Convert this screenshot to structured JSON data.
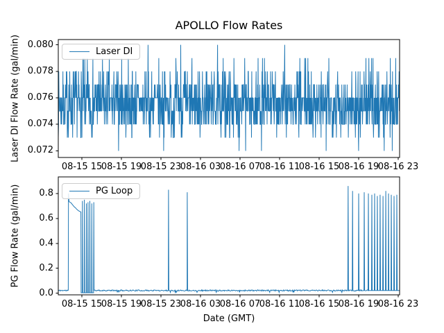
{
  "figure": {
    "title": "APOLLO Flow Rates",
    "line_color": "#1f77b4",
    "axes_color": "#000000",
    "legend_border_color": "#cccccc",
    "background": "#ffffff"
  },
  "chart_data": [
    {
      "type": "line",
      "title": "APOLLO Flow Rates",
      "ylabel": "Laser DI Flow Rate (gal/min)",
      "xlabel": "",
      "legend": {
        "label": "Laser DI",
        "position": "upper-left"
      },
      "grid": false,
      "ylim": [
        0.0715,
        0.0804
      ],
      "yticks": [
        0.072,
        0.074,
        0.076,
        0.078,
        0.08
      ],
      "ytick_labels": [
        "0.072",
        "0.074",
        "0.076",
        "0.078",
        "0.080"
      ],
      "xlim_hours": [
        -2.39,
        32.14
      ],
      "xtick_hours": [
        0,
        4,
        8,
        12,
        16,
        20,
        24,
        28,
        32
      ],
      "xtick_labels": [
        "08-15 15",
        "08-15 19",
        "08-15 23",
        "08-16 03",
        "08-16 07",
        "08-16 11",
        "08-16 15",
        "08-16 19",
        "08-16 23"
      ],
      "series": {
        "name": "Laser DI",
        "kind": "quantized_noise",
        "n_points": 1400,
        "seed": 7,
        "levels": [
          0.072,
          0.073,
          0.074,
          0.075,
          0.076,
          0.077,
          0.078,
          0.079,
          0.08
        ],
        "weights": [
          0.003,
          0.045,
          0.16,
          0.28,
          0.28,
          0.15,
          0.06,
          0.02,
          0.002
        ],
        "extremes": {
          "max_value": 0.08,
          "max_at_hours": [
            10.0
          ],
          "min_value": 0.072,
          "min_at_hours": [
            15.9,
            24.7,
            28.0
          ]
        }
      }
    },
    {
      "type": "line",
      "title": "",
      "ylabel": "PG Flow Rate (gal/min)",
      "xlabel": "Date (GMT)",
      "legend": {
        "label": "PG Loop",
        "position": "upper-left"
      },
      "grid": false,
      "ylim": [
        -0.013,
        0.933
      ],
      "yticks": [
        0.0,
        0.2,
        0.4,
        0.6,
        0.8
      ],
      "ytick_labels": [
        "0.0",
        "0.2",
        "0.4",
        "0.6",
        "0.8"
      ],
      "xlim_hours": [
        -2.39,
        32.14
      ],
      "xtick_hours": [
        0,
        4,
        8,
        12,
        16,
        20,
        24,
        28,
        32
      ],
      "xtick_labels": [
        "08-15 15",
        "08-15 19",
        "08-15 23",
        "08-16 03",
        "08-16 07",
        "08-16 11",
        "08-16 15",
        "08-16 19",
        "08-16 23"
      ],
      "series": {
        "name": "PG Loop",
        "kind": "piecewise",
        "baseline": 0.022,
        "baseline_noise": 0.005,
        "seed": 11,
        "points": [
          [
            -2.39,
            0.025
          ],
          [
            -1.38,
            0.025
          ],
          [
            -1.36,
            0.8
          ],
          [
            -1.3,
            0.735
          ],
          [
            -1.1,
            0.725
          ],
          [
            -0.95,
            0.71
          ],
          [
            -0.8,
            0.695
          ],
          [
            -0.65,
            0.685
          ],
          [
            -0.5,
            0.672
          ],
          [
            -0.35,
            0.662
          ],
          [
            -0.2,
            0.655
          ],
          [
            -0.1,
            0.652
          ],
          [
            -0.08,
            0.004
          ],
          [
            0.03,
            0.004
          ],
          [
            0.05,
            0.74
          ],
          [
            0.08,
            0.004
          ],
          [
            0.23,
            0.004
          ],
          [
            0.25,
            0.75
          ],
          [
            0.28,
            0.004
          ],
          [
            0.43,
            0.004
          ],
          [
            0.45,
            0.72
          ],
          [
            0.48,
            0.004
          ],
          [
            0.6,
            0.004
          ],
          [
            0.62,
            0.73
          ],
          [
            0.65,
            0.004
          ],
          [
            0.78,
            0.004
          ],
          [
            0.8,
            0.74
          ],
          [
            0.83,
            0.004
          ],
          [
            0.98,
            0.004
          ],
          [
            1.0,
            0.72
          ],
          [
            1.03,
            0.004
          ],
          [
            1.18,
            0.004
          ],
          [
            1.2,
            0.73
          ],
          [
            1.23,
            0.022
          ],
          [
            8.74,
            0.022
          ],
          [
            8.76,
            0.83
          ],
          [
            8.8,
            0.022
          ],
          [
            10.64,
            0.022
          ],
          [
            10.66,
            0.81
          ],
          [
            10.7,
            0.022
          ],
          [
            26.9,
            0.022
          ],
          [
            26.93,
            0.86
          ],
          [
            26.97,
            0.022
          ],
          [
            27.35,
            0.022
          ],
          [
            27.38,
            0.82
          ],
          [
            27.42,
            0.022
          ],
          [
            27.97,
            0.022
          ],
          [
            28.0,
            0.8
          ],
          [
            28.04,
            0.022
          ],
          [
            28.53,
            0.022
          ],
          [
            28.56,
            0.81
          ],
          [
            28.6,
            0.022
          ],
          [
            28.95,
            0.022
          ],
          [
            28.98,
            0.8
          ],
          [
            29.02,
            0.022
          ],
          [
            29.3,
            0.022
          ],
          [
            29.33,
            0.79
          ],
          [
            29.37,
            0.022
          ],
          [
            29.58,
            0.022
          ],
          [
            29.61,
            0.8
          ],
          [
            29.65,
            0.022
          ],
          [
            29.86,
            0.022
          ],
          [
            29.89,
            0.78
          ],
          [
            29.93,
            0.022
          ],
          [
            30.14,
            0.022
          ],
          [
            30.17,
            0.79
          ],
          [
            30.21,
            0.022
          ],
          [
            30.43,
            0.022
          ],
          [
            30.46,
            0.78
          ],
          [
            30.5,
            0.022
          ],
          [
            30.71,
            0.022
          ],
          [
            30.74,
            0.82
          ],
          [
            30.78,
            0.022
          ],
          [
            30.99,
            0.022
          ],
          [
            31.02,
            0.8
          ],
          [
            31.06,
            0.022
          ],
          [
            31.27,
            0.022
          ],
          [
            31.3,
            0.79
          ],
          [
            31.34,
            0.022
          ],
          [
            31.55,
            0.022
          ],
          [
            31.58,
            0.78
          ],
          [
            31.62,
            0.022
          ],
          [
            31.83,
            0.022
          ],
          [
            31.86,
            0.79
          ],
          [
            31.9,
            0.022
          ],
          [
            32.14,
            0.022
          ]
        ]
      }
    }
  ]
}
